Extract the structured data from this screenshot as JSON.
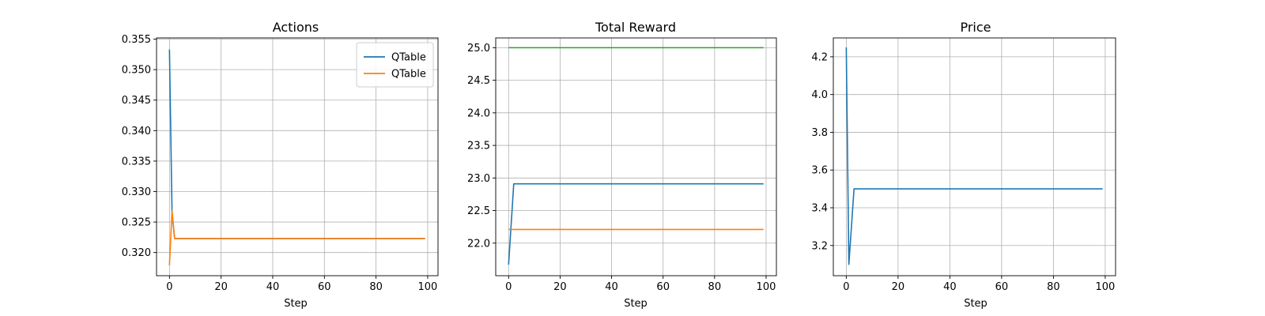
{
  "chart_data": [
    {
      "type": "line",
      "title": "Actions",
      "xlabel": "Step",
      "ylabel": "",
      "xlim": [
        -5,
        104
      ],
      "ylim": [
        0.3162,
        0.3552
      ],
      "xticks": [
        0,
        20,
        40,
        60,
        80,
        100
      ],
      "yticks": [
        0.32,
        0.325,
        0.33,
        0.335,
        0.34,
        0.345,
        0.35,
        0.355
      ],
      "ytick_labels": [
        "0.320",
        "0.325",
        "0.330",
        "0.335",
        "0.340",
        "0.345",
        "0.350",
        "0.355"
      ],
      "grid": true,
      "legend": "top-right",
      "series": [
        {
          "name": "QTable",
          "color": "#1f77b4",
          "x": [
            0,
            1,
            2,
            99
          ],
          "y": [
            0.3533,
            0.3265,
            0.3223,
            0.3223
          ]
        },
        {
          "name": "QTable",
          "color": "#ff7f0e",
          "x": [
            0,
            1,
            2,
            99
          ],
          "y": [
            0.3179,
            0.3269,
            0.3223,
            0.3223
          ]
        }
      ]
    },
    {
      "type": "line",
      "title": "Total Reward",
      "xlabel": "Step",
      "ylabel": "",
      "xlim": [
        -5,
        104
      ],
      "ylim": [
        21.5,
        25.15
      ],
      "xticks": [
        0,
        20,
        40,
        60,
        80,
        100
      ],
      "yticks": [
        22.0,
        22.5,
        23.0,
        23.5,
        24.0,
        24.5,
        25.0
      ],
      "ytick_labels": [
        "22.0",
        "22.5",
        "23.0",
        "23.5",
        "24.0",
        "24.5",
        "25.0"
      ],
      "grid": true,
      "series": [
        {
          "color": "#1f77b4",
          "x": [
            0,
            2,
            99
          ],
          "y": [
            21.67,
            22.91,
            22.91
          ]
        },
        {
          "color": "#ff7f0e",
          "x": [
            0,
            99
          ],
          "y": [
            22.21,
            22.21
          ]
        },
        {
          "color": "#2ca02c",
          "x": [
            0,
            99
          ],
          "y": [
            25.0,
            25.0
          ]
        }
      ]
    },
    {
      "type": "line",
      "title": "Price",
      "xlabel": "Step",
      "ylabel": "",
      "xlim": [
        -5,
        104
      ],
      "ylim": [
        3.04,
        4.3
      ],
      "xticks": [
        0,
        20,
        40,
        60,
        80,
        100
      ],
      "yticks": [
        3.2,
        3.4,
        3.6,
        3.8,
        4.0,
        4.2
      ],
      "ytick_labels": [
        "3.2",
        "3.4",
        "3.6",
        "3.8",
        "4.0",
        "4.2"
      ],
      "grid": true,
      "series": [
        {
          "color": "#1f77b4",
          "x": [
            0,
            1,
            3,
            99
          ],
          "y": [
            4.25,
            3.1,
            3.5,
            3.5
          ]
        }
      ]
    }
  ]
}
